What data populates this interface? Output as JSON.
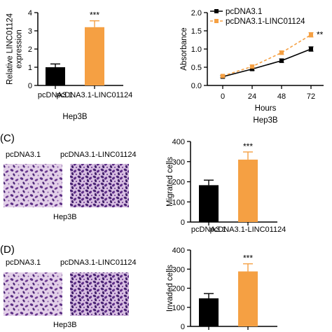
{
  "panels": {
    "C": {
      "label": "(C)",
      "caption_left": "pcDNA3.1",
      "caption_right": "pcDNA3.1-LINC01124",
      "cell_line": "Hep3B"
    },
    "D": {
      "label": "(D)",
      "caption_left": "pcDNA3.1",
      "caption_right": "pcDNA3.1-LINC01124",
      "cell_line": "Hep3B"
    }
  },
  "colors": {
    "control": "#000000",
    "linc": "#f5a043",
    "linc_error": "#f5a043",
    "image_bg": "#e2cfe8",
    "image_cell": "#5b2f84"
  },
  "chart_data": [
    {
      "id": "expression",
      "type": "bar",
      "categories": [
        "pcDNA3.1",
        "pcDNA3.1-LINC01124"
      ],
      "values": [
        1.0,
        3.2
      ],
      "errors": [
        0.18,
        0.35
      ],
      "ylabel": "Relative LINC01124\nexpression",
      "xlabel": "Hep3B",
      "ylim": [
        0,
        4
      ],
      "yticks": [
        0,
        1,
        2,
        3,
        4
      ],
      "annotations": [
        "",
        "***"
      ]
    },
    {
      "id": "absorbance",
      "type": "line",
      "x": [
        0,
        24,
        48,
        72
      ],
      "xticks": [
        0,
        24,
        48,
        72
      ],
      "xlabel": "Hours",
      "sublabel": "Hep3B",
      "ylabel": "Absorbance",
      "ylim": [
        0,
        2.0
      ],
      "yticks": [
        0.0,
        0.5,
        1.0,
        1.5,
        2.0
      ],
      "legend_position": "top-left",
      "series": [
        {
          "name": "pcDNA3.1",
          "values": [
            0.24,
            0.45,
            0.68,
            1.0
          ],
          "errors": [
            0.03,
            0.04,
            0.05,
            0.06
          ],
          "style": "solid"
        },
        {
          "name": "pcDNA3.1-LINC01124",
          "values": [
            0.26,
            0.52,
            0.9,
            1.39
          ],
          "errors": [
            0.03,
            0.04,
            0.05,
            0.06
          ],
          "style": "dashed"
        }
      ],
      "annotation": "**"
    },
    {
      "id": "migration",
      "type": "bar",
      "categories": [
        "pcDNA3.1",
        "pcDNA3.1-LINC01124"
      ],
      "values": [
        183,
        310
      ],
      "errors": [
        25,
        38
      ],
      "ylabel": "Migrated cells",
      "ylim": [
        0,
        400
      ],
      "yticks": [
        0,
        100,
        200,
        300,
        400
      ],
      "annotations": [
        "",
        "***"
      ]
    },
    {
      "id": "invasion",
      "type": "bar",
      "categories": [
        "pcDNA3.1",
        "pcDNA3.1-LINC01124"
      ],
      "values": [
        147,
        288
      ],
      "errors": [
        25,
        40
      ],
      "ylabel": "Invaded cells",
      "ylim": [
        0,
        400
      ],
      "yticks": [
        0,
        100,
        200,
        300,
        400
      ],
      "annotations": [
        "",
        "***"
      ]
    }
  ]
}
